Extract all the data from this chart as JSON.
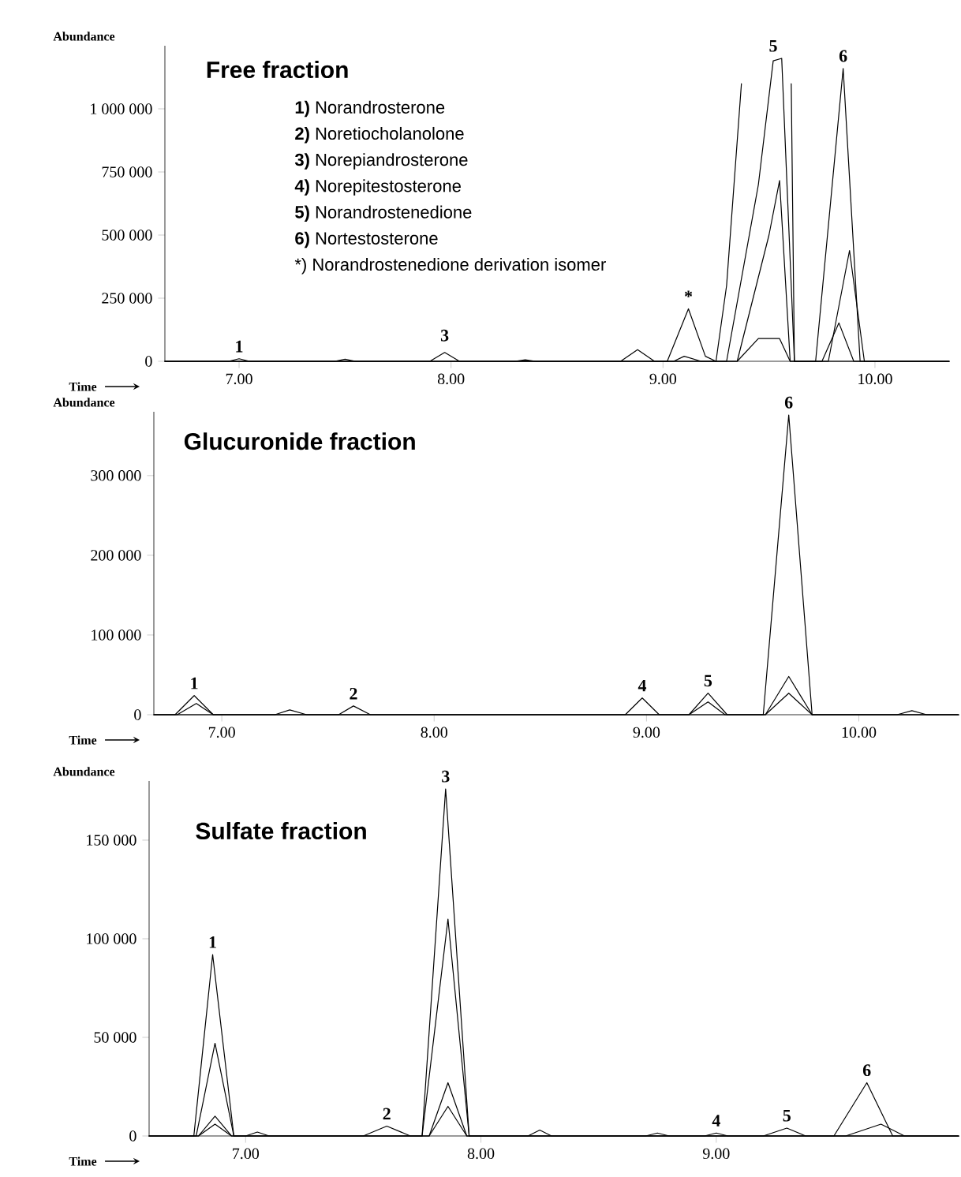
{
  "chart_data": [
    {
      "type": "line",
      "title": "Free fraction",
      "xlabel": "Time",
      "ylabel": "Abundance",
      "marker": "none",
      "xlim": [
        6.65,
        10.35
      ],
      "ylim": [
        0,
        1250000
      ],
      "xticks": [
        {
          "value": 7,
          "label": "7.00"
        },
        {
          "value": 8,
          "label": "8.00"
        },
        {
          "value": 9,
          "label": "9.00"
        },
        {
          "value": 10,
          "label": "10.00"
        }
      ],
      "yticks": [
        0,
        {
          "value": 250000,
          "label": "250 000"
        },
        {
          "value": 500000,
          "label": "500 000"
        },
        {
          "value": 750000,
          "label": "750 000"
        },
        {
          "value": 1000000,
          "label": "1 000 000"
        }
      ],
      "series": [
        {
          "color": "#000000",
          "x": [
            6.65,
            6.95,
            7.0,
            7.05,
            7.45,
            7.5,
            7.55,
            7.9,
            8.3,
            8.35,
            8.4,
            8.8,
            8.88,
            8.96,
            9.02,
            9.12,
            9.2,
            9.25,
            9.3,
            9.37,
            9.5,
            9.605,
            9.62,
            9.7,
            10.35
          ],
          "values": [
            0,
            0,
            10000,
            0,
            0,
            8000,
            0,
            0,
            0,
            6000,
            0,
            0,
            46000,
            0,
            0,
            208000,
            20000,
            0,
            300000,
            1100000,
            null,
            1100000,
            0,
            0,
            0
          ]
        },
        {
          "color": "#000000",
          "x": [
            6.65,
            9.3,
            9.45,
            9.52,
            9.56,
            9.62,
            9.72,
            9.85,
            9.93,
            10.35
          ],
          "values": [
            0,
            0,
            700000,
            1190000,
            1200000,
            0,
            0,
            1160000,
            0,
            0
          ]
        },
        {
          "color": "#000000",
          "x": [
            6.65,
            9.05,
            9.1,
            9.18,
            9.35,
            9.5,
            9.55,
            9.6,
            9.78,
            9.88,
            9.95,
            10.35
          ],
          "values": [
            0,
            0,
            20000,
            0,
            0,
            500000,
            716000,
            0,
            0,
            439000,
            0,
            0
          ]
        },
        {
          "color": "#000000",
          "x": [
            6.65,
            7.9,
            7.97,
            8.04,
            9.35,
            9.45,
            9.55,
            9.6,
            9.75,
            9.83,
            9.9,
            10.35
          ],
          "values": [
            0,
            0,
            35000,
            0,
            0,
            90000,
            90000,
            0,
            0,
            152000,
            0,
            0
          ]
        }
      ],
      "annotations": [
        {
          "text": "1",
          "x": 7.0,
          "y": 10000
        },
        {
          "text": "3",
          "x": 7.97,
          "y": 53000
        },
        {
          "text": "*",
          "x": 9.12,
          "y": 208000
        },
        {
          "text": "5",
          "x": 9.52,
          "y": 1200000
        },
        {
          "text": "6",
          "x": 9.85,
          "y": 1160000
        },
        "**1)** Norandrosterone",
        "**2)** Noretiocholanolone",
        "**3)** Norepiandrosterone",
        "**4)** Norepitestosterone",
        "**5)** Norandrostenedione",
        "**6)** Nortestosterone",
        "*) Norandrostenedione derivation  isomer"
      ]
    },
    {
      "type": "line",
      "title": "Glucuronide fraction",
      "xlabel": "Time",
      "ylabel": "Abundance",
      "marker": "none",
      "xlim": [
        6.68,
        10.47
      ],
      "ylim": [
        0,
        380000
      ],
      "xticks": [
        {
          "value": 7,
          "label": "7.00"
        },
        {
          "value": 8,
          "label": "8.00"
        },
        {
          "value": 9,
          "label": "9.00"
        },
        {
          "value": 10,
          "label": "10.00"
        }
      ],
      "yticks": [
        0,
        {
          "value": 100000,
          "label": "100 000"
        },
        {
          "value": 200000,
          "label": "200 000"
        },
        {
          "value": 300000,
          "label": "300 000"
        }
      ],
      "series": [
        {
          "color": "#000000",
          "x": [
            6.68,
            6.78,
            6.87,
            6.96,
            7.25,
            7.32,
            7.4,
            7.55,
            7.62,
            7.7,
            8.9,
            8.98,
            9.06,
            9.2,
            9.29,
            9.38,
            9.55,
            9.67,
            9.78,
            10.18,
            10.25,
            10.32,
            10.47
          ],
          "values": [
            0,
            0,
            24000,
            0,
            0,
            6000,
            0,
            0,
            11000,
            0,
            0,
            21000,
            0,
            0,
            27000,
            0,
            0,
            376000,
            0,
            0,
            5000,
            0,
            0
          ]
        },
        {
          "color": "#000000",
          "x": [
            6.68,
            6.79,
            6.88,
            6.96,
            9.2,
            9.29,
            9.37,
            9.56,
            9.67,
            9.78,
            10.47
          ],
          "values": [
            0,
            0,
            14000,
            0,
            0,
            16000,
            0,
            0,
            48000,
            0,
            0
          ]
        },
        {
          "color": "#000000",
          "x": [
            6.68,
            9.56,
            9.67,
            9.78,
            10.47
          ],
          "values": [
            0,
            0,
            27000,
            0,
            0
          ]
        }
      ],
      "annotations": [
        {
          "text": "1",
          "x": 6.87,
          "y": 24000
        },
        {
          "text": "2",
          "x": 7.62,
          "y": 11000
        },
        {
          "text": "4",
          "x": 8.98,
          "y": 21000
        },
        {
          "text": "5",
          "x": 9.29,
          "y": 27000
        },
        {
          "text": "6",
          "x": 9.67,
          "y": 376000
        }
      ]
    },
    {
      "type": "line",
      "title": "Sulfate fraction",
      "xlabel": "Time",
      "ylabel": "Abundance",
      "marker": "none",
      "xlim": [
        6.59,
        10.03
      ],
      "ylim": [
        0,
        180000
      ],
      "xticks": [
        {
          "value": 7,
          "label": "7.00"
        },
        {
          "value": 8,
          "label": "8.00"
        },
        {
          "value": 9,
          "label": "9.00"
        }
      ],
      "yticks": [
        0,
        {
          "value": 50000,
          "label": "50 000"
        },
        {
          "value": 100000,
          "label": "100 000"
        },
        {
          "value": 150000,
          "label": "150 000"
        }
      ],
      "series": [
        {
          "color": "#000000",
          "x": [
            6.59,
            6.78,
            6.86,
            6.95,
            7.0,
            7.05,
            7.1,
            7.5,
            7.6,
            7.7,
            7.75,
            7.85,
            7.95,
            8.2,
            8.25,
            8.3,
            8.7,
            8.75,
            8.8,
            9.2,
            9.3,
            9.38,
            9.5,
            9.64,
            9.75,
            10.03
          ],
          "values": [
            0,
            0,
            92000,
            0,
            0,
            2000,
            0,
            0,
            5000,
            0,
            0,
            176000,
            0,
            0,
            3000,
            0,
            0,
            1500,
            0,
            0,
            4000,
            0,
            0,
            27000,
            0,
            0
          ]
        },
        {
          "color": "#000000",
          "x": [
            6.59,
            6.79,
            6.87,
            6.95,
            7.75,
            7.86,
            7.95,
            10.03
          ],
          "values": [
            0,
            0,
            47000,
            0,
            0,
            110000,
            0,
            0
          ]
        },
        {
          "color": "#000000",
          "x": [
            6.59,
            6.8,
            6.87,
            6.94,
            7.78,
            7.86,
            7.94,
            8.95,
            9.0,
            9.05,
            9.55,
            9.7,
            9.8,
            10.03
          ],
          "values": [
            0,
            0,
            10000,
            0,
            0,
            27000,
            0,
            0,
            1500,
            0,
            0,
            6000,
            0,
            0
          ]
        },
        {
          "color": "#000000",
          "x": [
            6.59,
            6.8,
            6.87,
            6.94,
            7.78,
            7.86,
            7.94,
            10.03
          ],
          "values": [
            0,
            0,
            6000,
            0,
            0,
            15000,
            0,
            0
          ]
        }
      ],
      "annotations": [
        {
          "text": "1",
          "x": 6.86,
          "y": 92000
        },
        {
          "text": "2",
          "x": 7.6,
          "y": 5000
        },
        {
          "text": "3",
          "x": 7.85,
          "y": 176000
        },
        {
          "text": "4",
          "x": 9.0,
          "y": 1500
        },
        {
          "text": "5",
          "x": 9.3,
          "y": 4000
        },
        {
          "text": "6",
          "x": 9.64,
          "y": 27000
        }
      ]
    }
  ]
}
